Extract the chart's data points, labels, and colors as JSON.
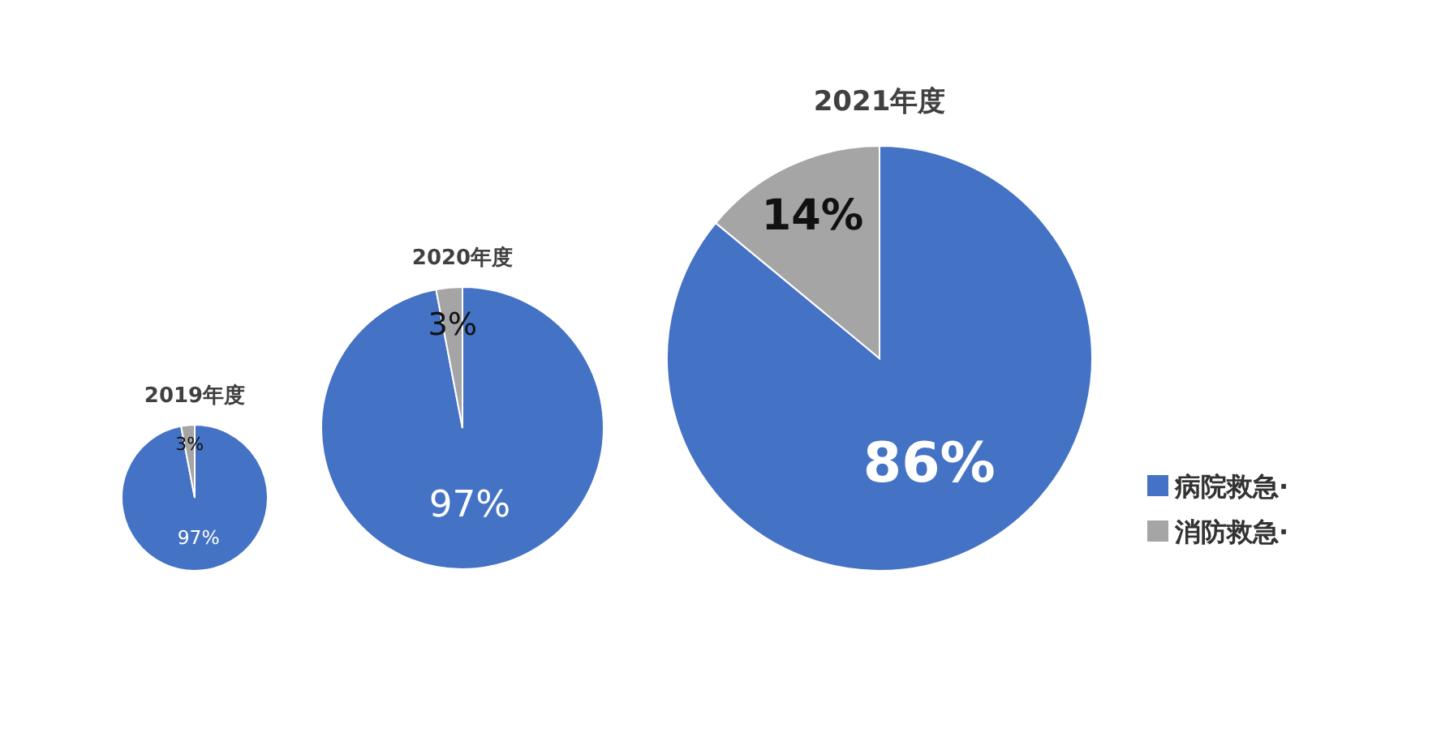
{
  "chart_data": [
    {
      "type": "pie",
      "title": "2019年度",
      "values": [
        97,
        3
      ],
      "colors": [
        "#4472c4",
        "#a5a5a5"
      ],
      "value_labels": [
        "97%",
        "3%"
      ]
    },
    {
      "type": "pie",
      "title": "2020年度",
      "values": [
        97,
        3
      ],
      "colors": [
        "#4472c4",
        "#a5a5a5"
      ],
      "value_labels": [
        "97%",
        "3%"
      ]
    },
    {
      "type": "pie",
      "title": "2021年度",
      "categories": [
        "病院救急·",
        "消防救急·"
      ],
      "values": [
        86,
        14
      ],
      "colors": [
        "#4472c4",
        "#a5a5a5"
      ],
      "value_labels": [
        "86%",
        "14%"
      ],
      "legend": "right"
    }
  ]
}
